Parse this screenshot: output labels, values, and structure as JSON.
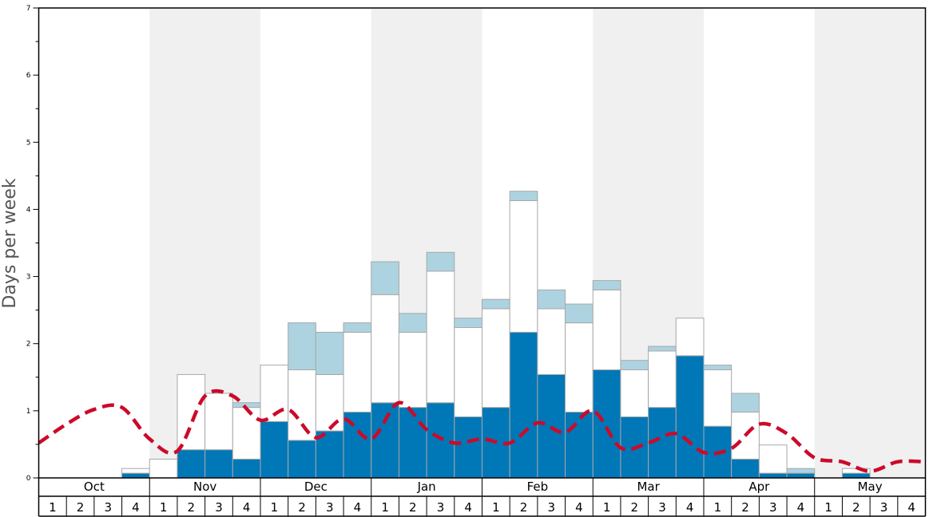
{
  "chart_data": {
    "type": "bar",
    "ylabel": "Days per week",
    "ylim": [
      0,
      7
    ],
    "y_ticks": [
      "0",
      "1",
      "2",
      "3",
      "4",
      "5",
      "6",
      "7"
    ],
    "months": [
      "Oct",
      "Nov",
      "Dec",
      "Jan",
      "Feb",
      "Mar",
      "Apr",
      "May"
    ],
    "week_labels": [
      "1",
      "2",
      "3",
      "4"
    ],
    "colors": {
      "dark": "#0077b6",
      "white": "#ffffff",
      "light": "#add3e0",
      "trend": "#cc0a2a",
      "band": "#f0f0f0"
    },
    "series": [
      {
        "key": "dark",
        "values": [
          0,
          0,
          0,
          0.07,
          0,
          0.42,
          0.42,
          0.28,
          0.84,
          0.56,
          0.7,
          0.98,
          1.12,
          1.05,
          1.12,
          0.91,
          1.05,
          2.17,
          1.54,
          0.98,
          1.61,
          0.91,
          1.05,
          1.82,
          0.77,
          0.28,
          0.07,
          0.07,
          0,
          0.07,
          0,
          0
        ]
      },
      {
        "key": "white",
        "values": [
          0,
          0,
          0,
          0.07,
          0.28,
          1.12,
          0.84,
          0.77,
          0.84,
          1.05,
          0.84,
          1.19,
          1.61,
          1.12,
          1.96,
          1.33,
          1.47,
          1.96,
          0.98,
          1.33,
          1.19,
          0.7,
          0.84,
          0.56,
          0.84,
          0.7,
          0.42,
          0,
          0,
          0.07,
          0,
          0
        ]
      },
      {
        "key": "light",
        "values": [
          0,
          0,
          0,
          0,
          0,
          0,
          0,
          0.07,
          0,
          0.7,
          0.63,
          0.14,
          0.49,
          0.28,
          0.28,
          0.14,
          0.14,
          0.14,
          0.28,
          0.28,
          0.14,
          0.14,
          0.07,
          0,
          0.07,
          0.28,
          0,
          0.07,
          0,
          0,
          0,
          0
        ]
      }
    ],
    "trend": [
      0.52,
      0.8,
      1.02,
      1.05,
      0.58,
      0.4,
      1.22,
      1.22,
      0.86,
      1.02,
      0.6,
      0.88,
      0.58,
      1.12,
      0.72,
      0.52,
      0.58,
      0.52,
      0.82,
      0.68,
      1.0,
      0.45,
      0.52,
      0.66,
      0.38,
      0.44,
      0.8,
      0.66,
      0.3,
      0.24,
      0.1,
      0.24,
      0.24
    ],
    "grid": false
  }
}
